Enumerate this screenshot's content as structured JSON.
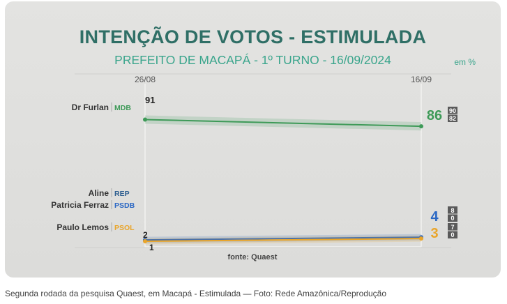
{
  "chart_data": {
    "type": "line",
    "title": "INTENÇÃO DE VOTOS - ESTIMULADA",
    "subtitle": "PREFEITO DE MACAPÁ - 1º TURNO - 16/09/2024",
    "unit": "em %",
    "x": [
      "26/08",
      "16/09"
    ],
    "ylim": [
      0,
      100
    ],
    "series": [
      {
        "name": "Dr Furlan",
        "party": "MDB",
        "color": "#3e9a58",
        "party_color": "#3e9a58",
        "values": [
          91,
          86
        ],
        "range": [
          "90",
          "82"
        ]
      },
      {
        "name": "Aline",
        "party": "REP",
        "color": "#2c5d8f",
        "party_color": "#2c5d8f",
        "values": [
          null,
          null
        ],
        "range": []
      },
      {
        "name": "Patricia Ferraz",
        "party": "PSDB",
        "color": "#2a67c4",
        "party_color": "#2a67c4",
        "values": [
          2,
          4
        ],
        "range": [
          "8",
          "0"
        ]
      },
      {
        "name": "Paulo Lemos",
        "party": "PSOL",
        "color": "#e9a52a",
        "party_color": "#e9a52a",
        "values": [
          1,
          3
        ],
        "range": [
          "7",
          "0"
        ]
      }
    ],
    "source": "fonte: Quaest"
  },
  "caption": "Segunda rodada da pesquisa Quaest, em Macapá - Estimulada — Foto: Rede Amazônica/Reprodução"
}
